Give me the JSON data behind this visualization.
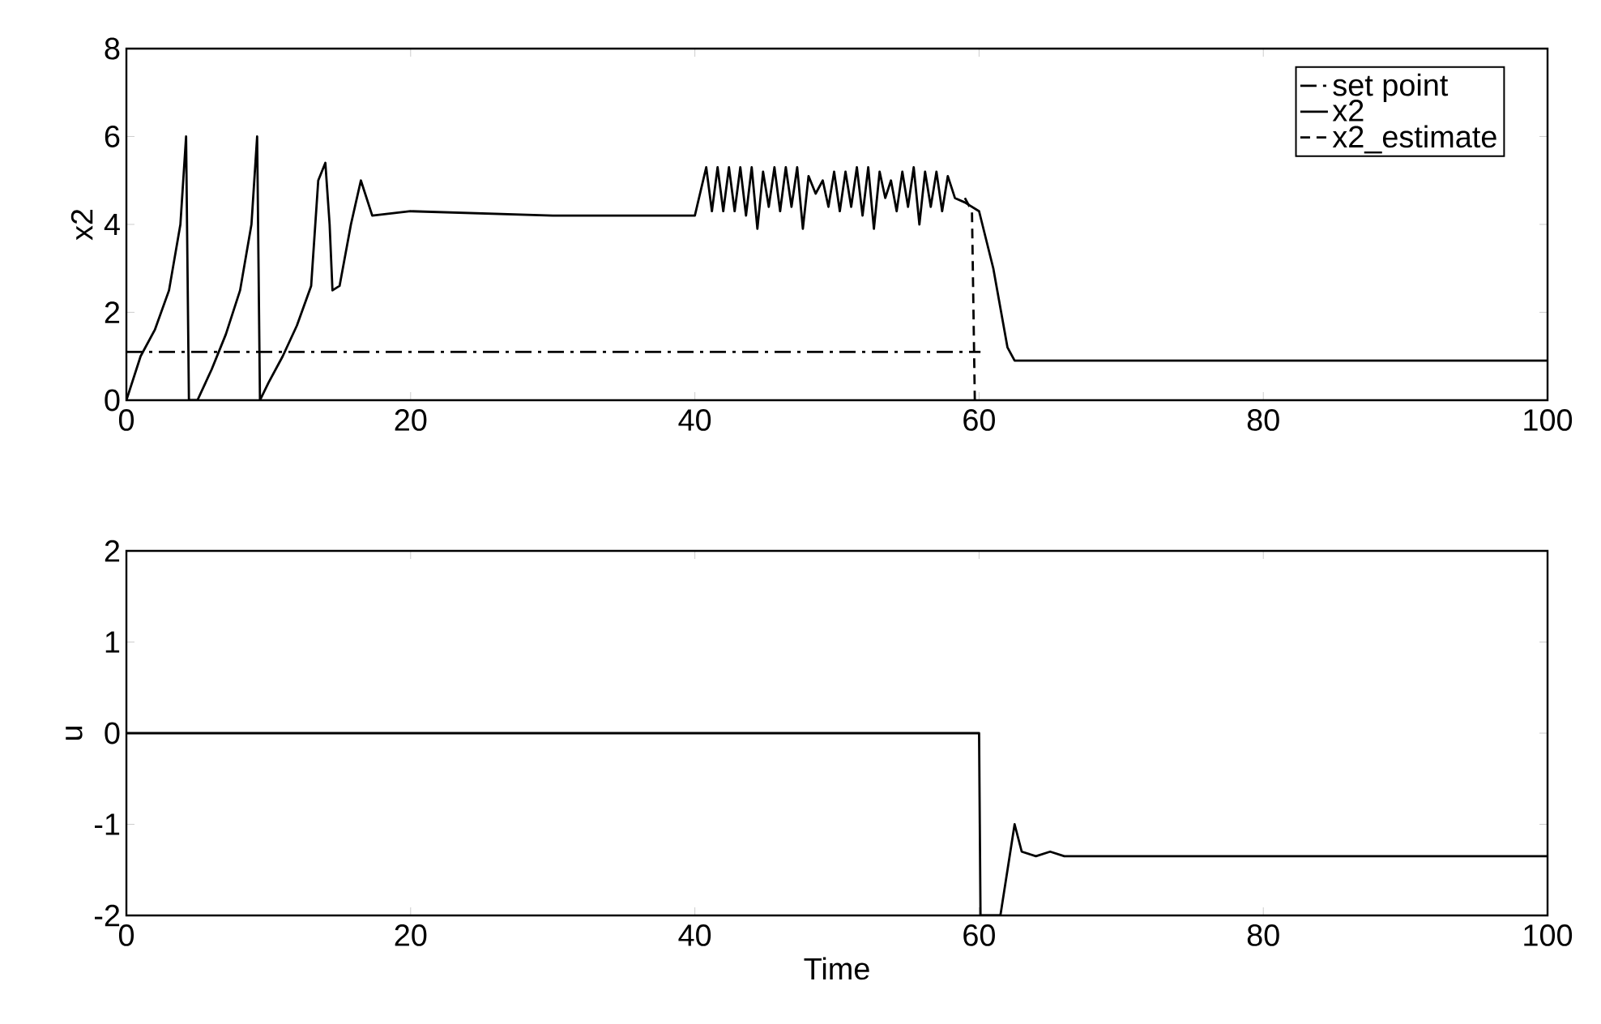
{
  "chart_data": [
    {
      "type": "line",
      "ylabel": "x2",
      "xlim": [
        0,
        100
      ],
      "ylim": [
        0,
        8
      ],
      "xticks": [
        0,
        20,
        40,
        60,
        80,
        100
      ],
      "yticks": [
        0,
        2,
        4,
        6,
        8
      ],
      "legend": "top right",
      "grid": false,
      "marker": "none",
      "series": [
        {
          "name": "set point",
          "color": "#000000",
          "line_style": "dashdot",
          "x": [
            0,
            60,
            60.1
          ],
          "values": [
            1.1,
            1.1,
            1.1
          ]
        },
        {
          "name": "x2",
          "color": "#000000",
          "line_style": "solid",
          "x": [
            0,
            1,
            2,
            3,
            3.8,
            4.2,
            4.4,
            5,
            6,
            7,
            8,
            8.8,
            9.2,
            9.4,
            10,
            11,
            12,
            13,
            13.5,
            14,
            14.3,
            14.5,
            15,
            15.8,
            16.5,
            17.3,
            20,
            30,
            40,
            40.8,
            41.2,
            41.6,
            42,
            42.4,
            42.8,
            43.2,
            43.6,
            44,
            44.4,
            44.8,
            45.2,
            45.6,
            46,
            46.4,
            46.8,
            47.2,
            47.6,
            48,
            48.5,
            49,
            49.4,
            49.8,
            50.2,
            50.6,
            51,
            51.4,
            51.8,
            52.2,
            52.6,
            53,
            53.4,
            53.8,
            54.2,
            54.6,
            55,
            55.4,
            55.8,
            56.2,
            56.6,
            57,
            57.4,
            57.8,
            58.3,
            59,
            60,
            61,
            62,
            62.5,
            70,
            100
          ],
          "values": [
            0,
            1,
            1.6,
            2.5,
            4,
            6,
            0,
            0,
            0.7,
            1.5,
            2.5,
            4,
            6,
            0,
            0.4,
            1,
            1.7,
            2.6,
            5,
            5.4,
            4,
            2.5,
            2.6,
            4,
            5,
            4.2,
            4.3,
            4.2,
            4.2,
            5.3,
            4.3,
            5.3,
            4.3,
            5.3,
            4.3,
            5.3,
            4.2,
            5.3,
            3.9,
            5.2,
            4.4,
            5.3,
            4.3,
            5.3,
            4.4,
            5.3,
            3.9,
            5.1,
            4.7,
            5.0,
            4.4,
            5.2,
            4.3,
            5.2,
            4.4,
            5.3,
            4.2,
            5.3,
            3.9,
            5.2,
            4.6,
            5.0,
            4.3,
            5.2,
            4.4,
            5.3,
            4.0,
            5.2,
            4.4,
            5.2,
            4.3,
            5.1,
            4.6,
            4.5,
            4.3,
            3,
            1.2,
            0.9,
            0.9,
            0.9
          ]
        },
        {
          "name": "x2_estimate",
          "color": "#000000",
          "line_style": "dashed",
          "x": [
            59,
            59.5,
            59.7
          ],
          "values": [
            4.6,
            4.3,
            0
          ]
        }
      ]
    },
    {
      "type": "line",
      "ylabel": "u",
      "xlabel": "Time",
      "xlim": [
        0,
        100
      ],
      "ylim": [
        -2,
        2
      ],
      "xticks": [
        0,
        20,
        40,
        60,
        80,
        100
      ],
      "yticks": [
        -2,
        -1,
        0,
        1,
        2
      ],
      "grid": false,
      "marker": "none",
      "series": [
        {
          "color": "#000000",
          "line_style": "solid",
          "x": [
            0,
            60,
            60.1,
            61.5,
            62.5,
            63,
            64,
            65,
            66,
            100
          ],
          "values": [
            0,
            0,
            -2,
            -2,
            -1,
            -1.3,
            -1.35,
            -1.3,
            -1.35,
            -1.35
          ]
        }
      ]
    }
  ]
}
